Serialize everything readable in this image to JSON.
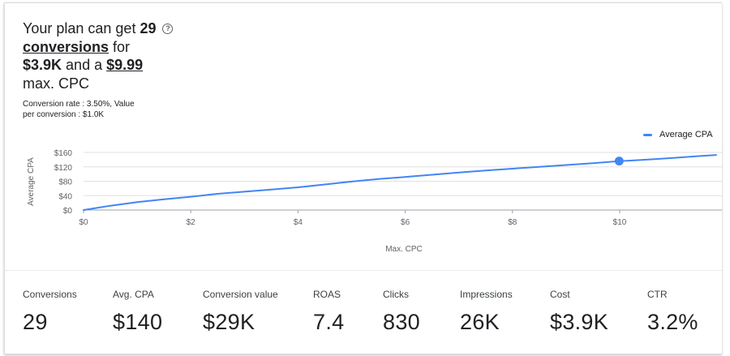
{
  "headline": {
    "prefix": "Your plan can get ",
    "conversions_count": "29",
    "conversions_word": "conversions",
    "for_word": " for",
    "cost": "$3.9K",
    "and_a": " and a ",
    "max_cpc": "$9.99",
    "max_cpc_suffix": "max. CPC"
  },
  "help_icon": "?",
  "subtext": {
    "line1": "Conversion rate : 3.50%, Value",
    "line2": "per conversion : $1.0K"
  },
  "colors": {
    "accent": "#4285f4",
    "grid": "#e0e0e0",
    "axis_text": "#5f6368"
  },
  "chart_data": {
    "type": "line",
    "legend_position": "top-right",
    "xlabel": "Max. CPC",
    "ylabel": "Average CPA",
    "xlim": [
      0,
      11.8
    ],
    "ylim": [
      0,
      160
    ],
    "x_ticks": [
      0,
      2,
      4,
      6,
      8,
      10
    ],
    "x_tick_labels": [
      "$0",
      "$2",
      "$4",
      "$6",
      "$8",
      "$10"
    ],
    "y_ticks": [
      0,
      40,
      80,
      120,
      160
    ],
    "y_tick_labels": [
      "$0",
      "$40",
      "$80",
      "$120",
      "$160"
    ],
    "series": [
      {
        "name": "Average CPA",
        "x": [
          0,
          0.5,
          1,
          1.5,
          2,
          2.5,
          3,
          3.5,
          4,
          4.5,
          5,
          5.5,
          6,
          6.5,
          7,
          7.5,
          8,
          8.5,
          9,
          9.5,
          10,
          10.5,
          11,
          11.5,
          11.8
        ],
        "y": [
          0,
          12,
          22,
          30,
          37,
          45,
          51,
          57,
          63,
          71,
          79,
          86,
          92,
          98,
          104,
          110,
          115,
          120,
          125,
          130,
          136,
          140,
          145,
          150,
          153
        ]
      }
    ],
    "highlight": {
      "x": 9.99,
      "y": 136
    }
  },
  "metrics": [
    {
      "key": "conversions",
      "label": "Conversions",
      "value": "29"
    },
    {
      "key": "avg-cpa",
      "label": "Avg. CPA",
      "value": "$140"
    },
    {
      "key": "conversion-value",
      "label": "Conversion value",
      "value": "$29K"
    },
    {
      "key": "roas",
      "label": "ROAS",
      "value": "7.4"
    },
    {
      "key": "clicks",
      "label": "Clicks",
      "value": "830"
    },
    {
      "key": "impressions",
      "label": "Impressions",
      "value": "26K"
    },
    {
      "key": "cost",
      "label": "Cost",
      "value": "$3.9K"
    },
    {
      "key": "ctr",
      "label": "CTR",
      "value": "3.2%"
    }
  ]
}
